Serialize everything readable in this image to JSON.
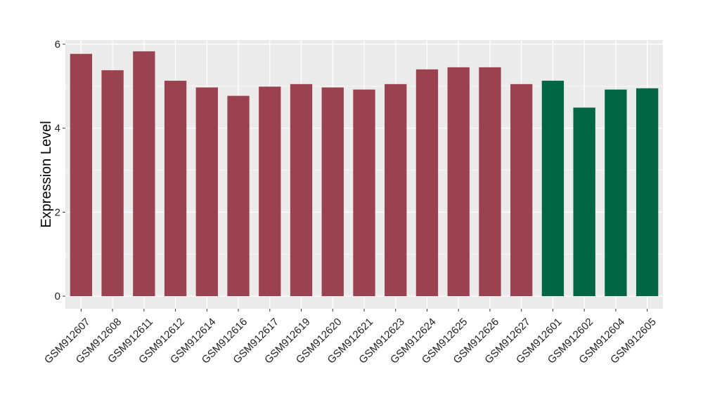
{
  "chart_data": {
    "type": "bar",
    "title": "",
    "xlabel": "",
    "ylabel": "Expression Level",
    "ylim": [
      -0.3,
      6.1
    ],
    "yticks": [
      0,
      2,
      4,
      6
    ],
    "grid": true,
    "legend": "none",
    "categories": [
      "GSM912607",
      "GSM912608",
      "GSM912611",
      "GSM912612",
      "GSM912614",
      "GSM912616",
      "GSM912617",
      "GSM912619",
      "GSM912620",
      "GSM912621",
      "GSM912623",
      "GSM912624",
      "GSM912625",
      "GSM912626",
      "GSM912627",
      "GSM912601",
      "GSM912602",
      "GSM912604",
      "GSM912605"
    ],
    "values": [
      5.77,
      5.38,
      5.83,
      5.13,
      4.97,
      4.77,
      4.99,
      5.05,
      4.97,
      4.92,
      5.05,
      5.4,
      5.45,
      5.45,
      5.05,
      5.13,
      4.49,
      4.92,
      4.95
    ],
    "bar_colors": [
      "#9b4250",
      "#9b4250",
      "#9b4250",
      "#9b4250",
      "#9b4250",
      "#9b4250",
      "#9b4250",
      "#9b4250",
      "#9b4250",
      "#9b4250",
      "#9b4250",
      "#9b4250",
      "#9b4250",
      "#9b4250",
      "#9b4250",
      "#006644",
      "#006644",
      "#006644",
      "#006644"
    ],
    "panel_background": "#ebebeb",
    "grid_color": "#ffffff"
  }
}
